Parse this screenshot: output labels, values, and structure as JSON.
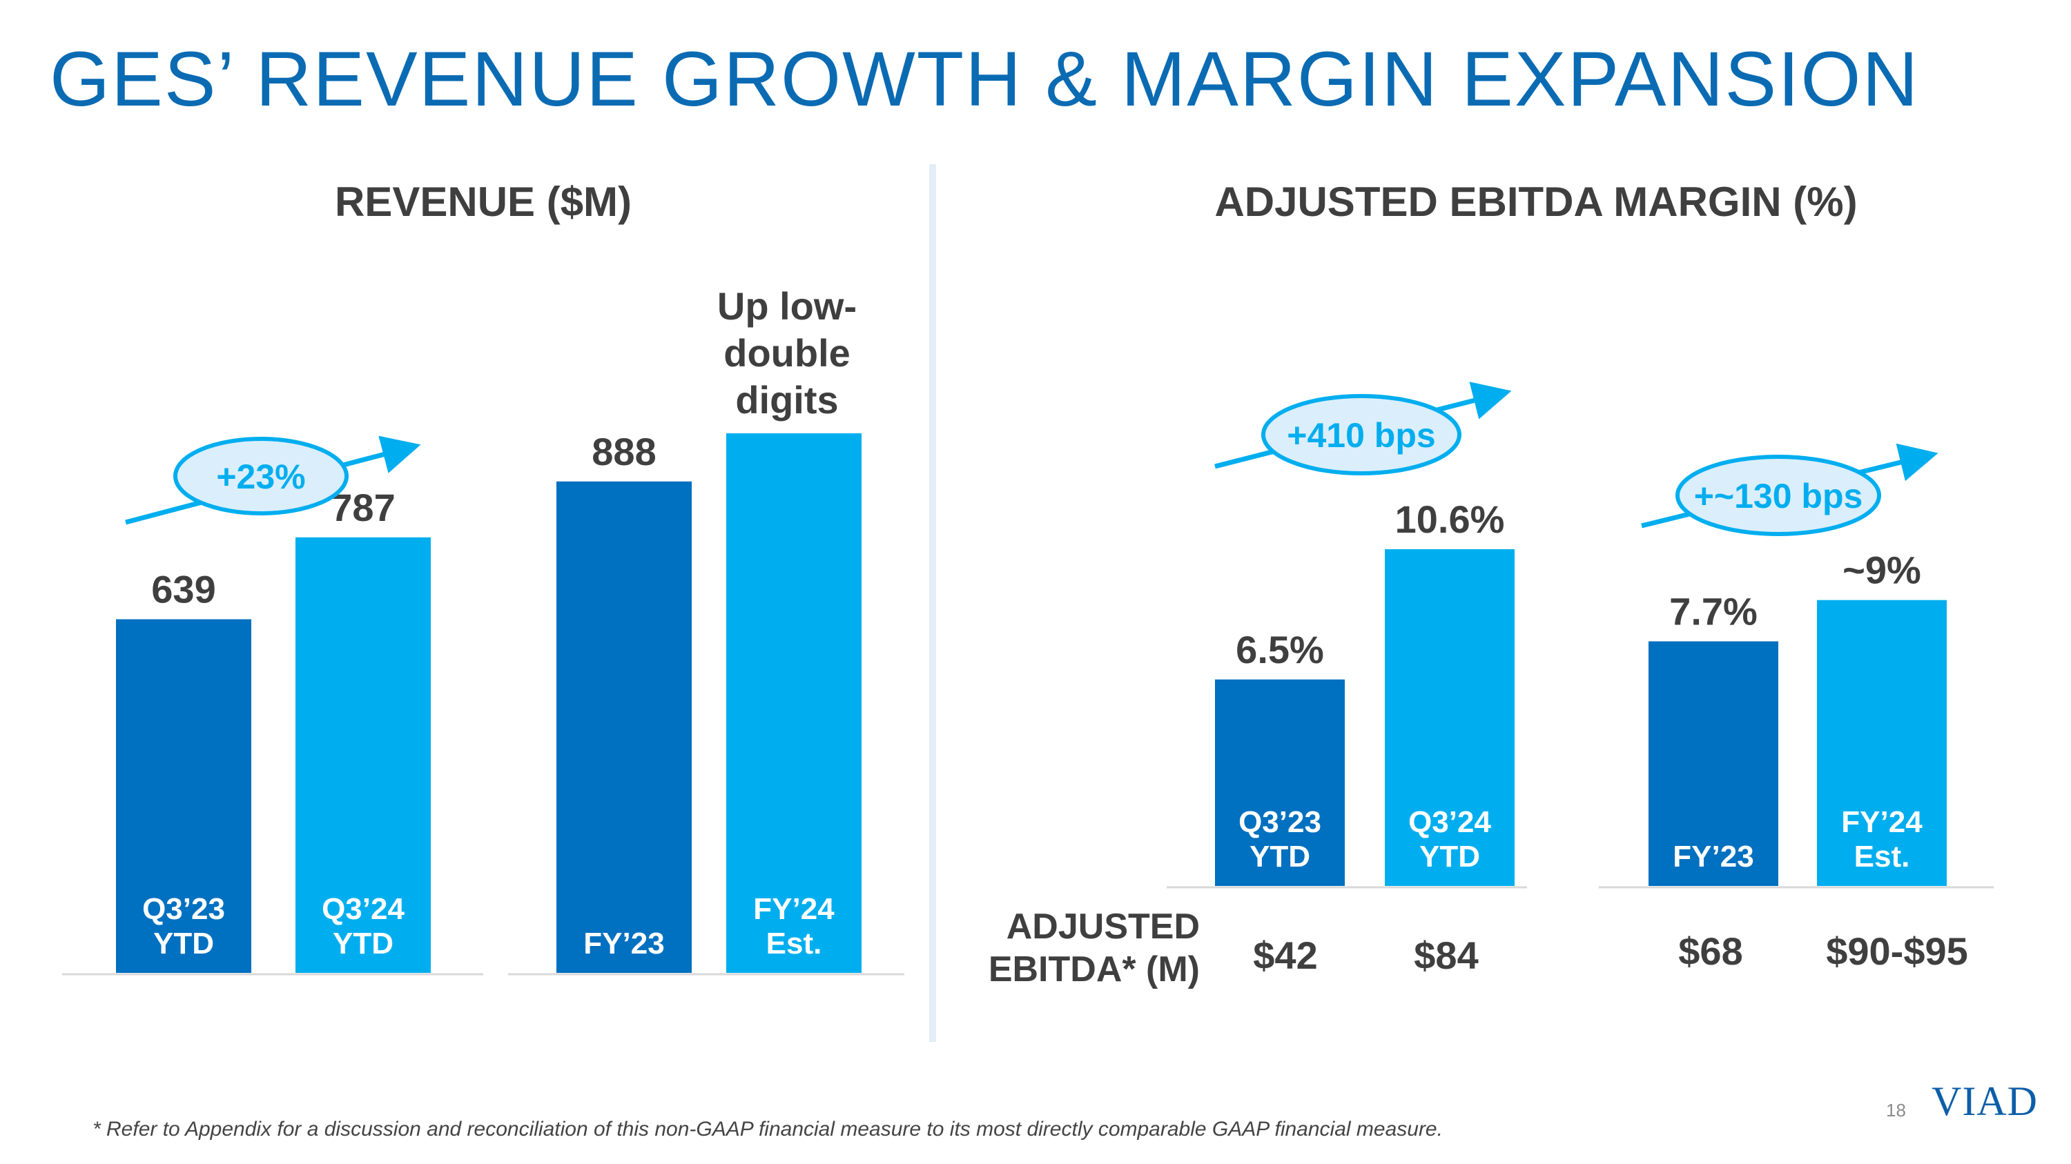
{
  "slide": {
    "title": "GES’ REVENUE GROWTH & MARGIN EXPANSION",
    "footnote": "* Refer to Appendix for a discussion and reconciliation of this non-GAAP financial measure to its most directly comparable GAAP financial measure.",
    "page_number": "18",
    "logo": "VIAD"
  },
  "colors": {
    "dark_blue": "#0070c0",
    "light_blue": "#00aeef",
    "title_blue": "#0a6bb3",
    "text_gray": "#3f3f3f",
    "oval_fill": "#dbeefb"
  },
  "revenue_panel": {
    "title": "REVENUE ($M)",
    "growth_label": "+23%",
    "fy24_note_lines": [
      "Up low-",
      "double",
      "digits"
    ]
  },
  "margin_panel": {
    "title": "ADJUSTED EBITDA MARGIN (%)",
    "growth_labels": [
      "+410 bps",
      "+~130 bps"
    ],
    "ebitda_row_label_lines": [
      "ADJUSTED",
      "EBITDA* (M)"
    ],
    "ebitda_values": [
      "$42",
      "$84",
      "$68",
      "$90-$95"
    ]
  },
  "chart_data": [
    {
      "type": "bar",
      "title": "REVENUE ($M)",
      "categories": [
        [
          "Q3’23",
          "YTD"
        ],
        [
          "Q3’24",
          "YTD"
        ],
        [
          "FY’23"
        ],
        [
          "FY’24",
          "Est."
        ]
      ],
      "values": [
        639,
        787,
        888,
        975
      ],
      "value_labels": [
        "639",
        "787",
        "888",
        ""
      ],
      "bar_colors": [
        "dark",
        "light",
        "dark",
        "light"
      ],
      "groups": [
        [
          0,
          1
        ],
        [
          2,
          3
        ]
      ],
      "annotations": [
        "+23%",
        "Up low-double digits"
      ]
    },
    {
      "type": "bar",
      "title": "ADJUSTED EBITDA MARGIN (%)",
      "categories": [
        [
          "Q3’23",
          "YTD"
        ],
        [
          "Q3’24",
          "YTD"
        ],
        [
          "FY’23"
        ],
        [
          "FY’24",
          "Est."
        ]
      ],
      "values": [
        6.5,
        10.6,
        7.7,
        9.0
      ],
      "value_labels": [
        "6.5%",
        "10.6%",
        "7.7%",
        "~9%"
      ],
      "bar_colors": [
        "dark",
        "light",
        "dark",
        "light"
      ],
      "groups": [
        [
          0,
          1
        ],
        [
          2,
          3
        ]
      ],
      "annotations": [
        "+410 bps",
        "+~130 bps"
      ]
    }
  ]
}
